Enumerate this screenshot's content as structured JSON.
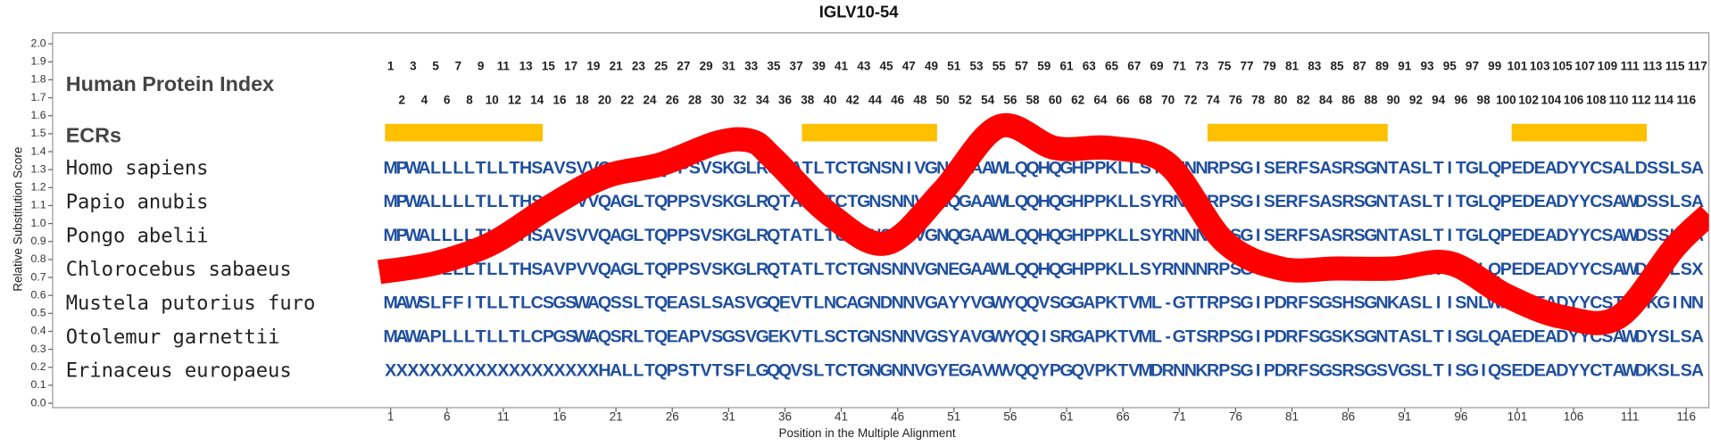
{
  "chart_data": {
    "type": "line",
    "title": "IGLV10-54",
    "x_label": "Position in the Multiple Alignment",
    "y_label": "Relative Substitution Score",
    "xlim": [
      -29,
      118
    ],
    "xticks": [
      1,
      6,
      11,
      16,
      21,
      26,
      31,
      36,
      41,
      46,
      51,
      56,
      61,
      66,
      71,
      76,
      81,
      86,
      91,
      96,
      101,
      106,
      111,
      116
    ],
    "ylim": [
      0,
      2.0
    ],
    "yticks": [
      {
        "value": 0,
        "label": "0.0"
      },
      {
        "value": 0.1,
        "label": "0.1"
      },
      {
        "value": 0.2,
        "label": "0.2"
      },
      {
        "value": 0.3,
        "label": "0.3"
      },
      {
        "value": 0.4,
        "label": "0.4"
      },
      {
        "value": 0.5,
        "label": "0.5"
      },
      {
        "value": 0.6,
        "label": "0.6"
      },
      {
        "value": 0.7,
        "label": "0.7"
      },
      {
        "value": 0.8,
        "label": "0.8"
      },
      {
        "value": 0.9,
        "label": "0.9"
      },
      {
        "value": 1.0,
        "label": "1.0"
      },
      {
        "value": 1.1,
        "label": "1.1"
      },
      {
        "value": 1.2,
        "label": "1.2"
      },
      {
        "value": 1.3,
        "label": "1.3"
      },
      {
        "value": 1.4,
        "label": "1.4"
      },
      {
        "value": 1.5,
        "label": "1.5"
      },
      {
        "value": 1.6,
        "label": "1.6"
      },
      {
        "value": 1.7,
        "label": "1.7"
      },
      {
        "value": 1.8,
        "label": "1.8"
      },
      {
        "value": 1.9,
        "label": "1.9"
      },
      {
        "value": 2.0,
        "label": "2.0"
      }
    ],
    "index_label": "Human Protein Index",
    "protein_index": [
      1,
      2,
      3,
      4,
      5,
      6,
      7,
      8,
      9,
      10,
      11,
      12,
      13,
      14,
      15,
      16,
      17,
      18,
      19,
      20,
      21,
      22,
      23,
      24,
      25,
      26,
      27,
      28,
      29,
      30,
      31,
      32,
      33,
      34,
      35,
      36,
      37,
      38,
      39,
      40,
      41,
      42,
      43,
      44,
      45,
      46,
      47,
      48,
      49,
      50,
      51,
      52,
      53,
      54,
      55,
      56,
      57,
      58,
      59,
      60,
      61,
      62,
      63,
      64,
      65,
      66,
      67,
      68,
      69,
      70,
      71,
      72,
      73,
      74,
      75,
      76,
      77,
      78,
      79,
      80,
      81,
      82,
      83,
      84,
      85,
      86,
      87,
      88,
      89,
      90,
      91,
      92,
      93,
      94,
      95,
      96,
      97,
      98,
      99,
      100,
      101,
      102,
      103,
      104,
      105,
      106,
      107,
      108,
      109,
      110,
      111,
      112,
      113,
      114,
      115,
      116,
      117
    ],
    "ecr_label": "ECRs",
    "ecr_color": "#ffc000",
    "ecrs": [
      [
        1,
        14
      ],
      [
        38,
        49
      ],
      [
        74,
        89
      ],
      [
        101,
        112
      ]
    ],
    "residue_color": "#1f4f9e",
    "sequences": [
      {
        "species": "Homo sapiens",
        "residues": "MPWALLLLTLLTHSAVSVVQAGLTQPPSVSKGLRQTATLTCTGNSNIVGNQGAAWLQQHQGHPPKLLSYRNNNRPSGISERFSASRSGNTASLTITGLQPEDEADYYCSALDSSLSA"
      },
      {
        "species": "Papio anubis",
        "residues": "MPWALLLLTLLTHSAVPVVQAGLTQPPSVSKGLRQTATLTCTGNSNNVGNQGAAWLQQHQGHPPKLLSYRNNNRPSGISERFSASRSGNTASLTITGLQPEDEADYYCSAWDSSLSA"
      },
      {
        "species": "Pongo abelii",
        "residues": "MPWALLLLTLLTHSAVSVVQAGLTQPPSVSKGLRQTATLTCTGNSNNVGNQGAAWLQQHQGHPPKLLSYRNNNRPSGISERFSASRSGNTASLTITGLQPEDEADYYCSAWDSSLSA"
      },
      {
        "species": "Chlorocebus sabaeus",
        "residues": "MPWALLLLTLLTHSAVPVVQAGLTQPPSVSKGLRQTATLTCTGNSNNVGNEGAAWLQQHQGHPPKLLSYRNNNRPSGISERFSASRSGNTASLTITGLQPEDEADYYCSAWDSSLSX"
      },
      {
        "species": "Mustela putorius furo",
        "residues": "MAWSLFFITLLTLCSGSWAQSSLTQEASLSASVGQEVTLNCAGNDNNVGAYYVGWYQQVSGGAPKTVML-GTTRPSGIPDRFSGSHSGNKASLIISNLWPEDEADYYCSTWDKGINN"
      },
      {
        "species": "Otolemur garnettii",
        "residues": "MAWAPLLLTLLTLCPGSWAQSRLTQEAPVSGSVGEKVTLSCTGNSNNVGSYAVGWYQQISRGAPKTVML-GTSRPSGIPDRFSGSKSGNTASLTISGLQAEDEADYYCSAWDYSLSA"
      },
      {
        "species": "Erinaceus europaeus",
        "residues": "XXXXXXXXXXXXXXXXXXXHALLTQPSTVTSFLGQQVSLTCTGNGNNVGYEGAVWVQQYPGQVPKTVMDRNNKRPSGIPDRFSGSRSGSVGSLTISGIQSEDEADYYCTAWDKSLSA"
      }
    ],
    "x": [
      0,
      5,
      10,
      15,
      20,
      25,
      30,
      33,
      35,
      40,
      45,
      50,
      55,
      60,
      65,
      70,
      75,
      80,
      85,
      90,
      95,
      100,
      105,
      110,
      115,
      118
    ],
    "series": [
      {
        "color": "#ff0000",
        "values": [
          0.73,
          0.78,
          0.89,
          1.09,
          1.26,
          1.33,
          1.45,
          1.46,
          1.36,
          1.05,
          0.89,
          1.18,
          1.54,
          1.42,
          1.42,
          1.33,
          0.9,
          0.75,
          0.75,
          0.75,
          0.78,
          0.6,
          0.48,
          0.48,
          0.87,
          1.05
        ]
      }
    ]
  }
}
